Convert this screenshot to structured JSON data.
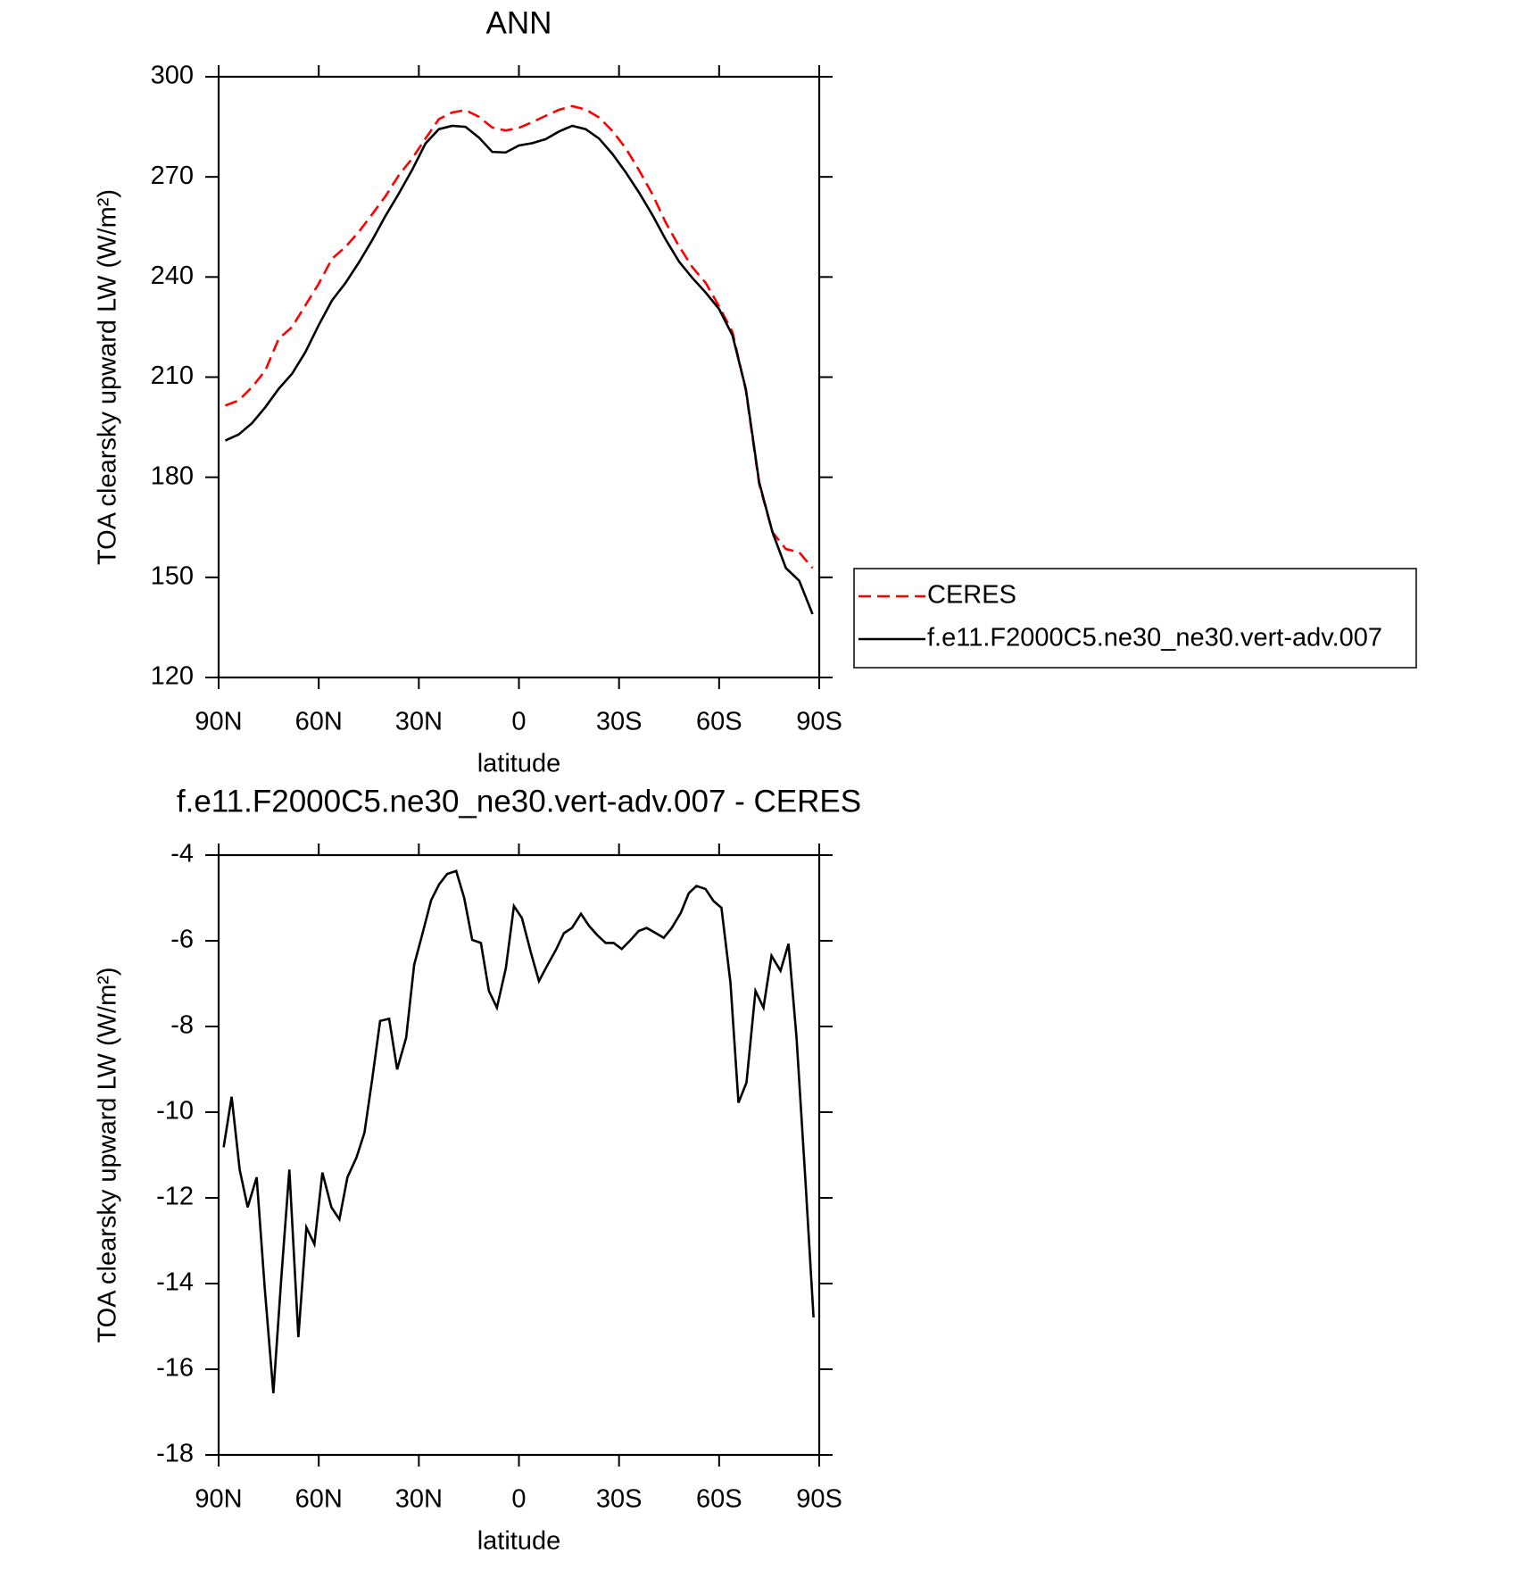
{
  "chart_data": [
    {
      "type": "line",
      "title": "ANN",
      "xlabel": "latitude",
      "ylabel": "TOA clearsky upward LW (W/m²)",
      "x": [
        88,
        84,
        80,
        76,
        72,
        68,
        64,
        60,
        56,
        52,
        48,
        44,
        40,
        36,
        32,
        28,
        24,
        20,
        16,
        12,
        8,
        4,
        0,
        -4,
        -8,
        -12,
        -16,
        -20,
        -24,
        -28,
        -32,
        -36,
        -40,
        -44,
        -48,
        -52,
        -56,
        -60,
        -64,
        -68,
        -72,
        -76,
        -80,
        -84,
        -88
      ],
      "series": [
        {
          "name": "CERES",
          "color": "#ff0000",
          "linestyle": "dashed",
          "values": [
            201.5,
            203,
            207,
            212,
            221.5,
            225,
            231.5,
            238,
            245.5,
            249,
            253.5,
            258.8,
            264.2,
            270.5,
            275.5,
            281.5,
            287.3,
            289.3,
            290,
            288,
            284.8,
            283.9,
            284.7,
            286.4,
            288.3,
            290.1,
            291.2,
            290.2,
            287.8,
            283.8,
            278.6,
            272,
            264.8,
            256.3,
            249.2,
            242.9,
            238.2,
            231.2,
            223.5,
            206,
            178,
            163.5,
            158.5,
            157.5,
            152.8
          ]
        },
        {
          "name": "f.e11.F2000C5.ne30_ne30.vert-adv.007",
          "color": "#000000",
          "linestyle": "solid",
          "values": [
            191,
            192.8,
            196.2,
            201,
            206.5,
            211,
            217.5,
            225.6,
            233,
            238.2,
            244.3,
            251,
            258.3,
            265,
            272.1,
            280,
            284.3,
            285.3,
            285,
            281.8,
            277.5,
            277.3,
            279.4,
            280.1,
            281.3,
            283.6,
            285.3,
            284.3,
            281.5,
            276.9,
            271.4,
            265.3,
            258.6,
            251.2,
            244.6,
            239.7,
            235.3,
            230.4,
            222.5,
            206.5,
            178.5,
            163.5,
            152.8,
            149,
            139
          ]
        }
      ],
      "xlim": [
        90,
        -90
      ],
      "ylim": [
        120,
        300
      ],
      "xticks": [
        {
          "value": 90,
          "label": "90N"
        },
        {
          "value": 60,
          "label": "60N"
        },
        {
          "value": 30,
          "label": "30N"
        },
        0,
        {
          "value": -30,
          "label": "30S"
        },
        {
          "value": -60,
          "label": "60S"
        },
        {
          "value": -90,
          "label": "90S"
        }
      ],
      "yticks": [
        120,
        150,
        180,
        210,
        240,
        270,
        300
      ],
      "legend": "outside right"
    },
    {
      "type": "line",
      "title": "f.e11.F2000C5.ne30_ne30.vert-adv.007 - CERES",
      "xlabel": "latitude",
      "ylabel": "TOA clearsky upward LW (W/m²)",
      "x": [
        88.5,
        86.1,
        83.7,
        81.3,
        78.6,
        76.2,
        73.6,
        71.2,
        68.8,
        66.1,
        63.7,
        61.3,
        58.9,
        56.2,
        53.8,
        51.4,
        48.7,
        46.3,
        43.9,
        41.6,
        38.9,
        36.5,
        33.8,
        31.4,
        29.0,
        26.3,
        23.9,
        21.5,
        18.8,
        16.4,
        14.0,
        11.4,
        9.0,
        6.6,
        3.9,
        1.5,
        -0.9,
        -3.6,
        -6.0,
        -8.4,
        -11.1,
        -13.5,
        -15.9,
        -18.6,
        -21.0,
        -23.4,
        -26.0,
        -28.4,
        -30.8,
        -33.5,
        -35.9,
        -38.3,
        -41.0,
        -43.4,
        -45.8,
        -48.5,
        -50.9,
        -53.2,
        -55.9,
        -58.3,
        -60.7,
        -63.4,
        -65.8,
        -68.2,
        -70.9,
        -73.3,
        -75.7,
        -78.4,
        -80.8,
        -83.2,
        -85.9,
        -88.3
      ],
      "values": [
        -10.82,
        -9.64,
        -11.34,
        -12.22,
        -11.52,
        -14.09,
        -16.56,
        -13.85,
        -11.34,
        -15.25,
        -12.69,
        -13.08,
        -11.41,
        -12.22,
        -12.5,
        -11.52,
        -11.06,
        -10.48,
        -9.19,
        -7.87,
        -7.82,
        -9.0,
        -8.26,
        -6.56,
        -5.86,
        -5.05,
        -4.68,
        -4.44,
        -4.37,
        -5.0,
        -5.98,
        -6.05,
        -7.17,
        -7.56,
        -6.63,
        -5.19,
        -5.47,
        -6.28,
        -6.94,
        -6.59,
        -6.21,
        -5.82,
        -5.7,
        -5.37,
        -5.65,
        -5.86,
        -6.05,
        -6.05,
        -6.19,
        -5.98,
        -5.77,
        -5.7,
        -5.82,
        -5.93,
        -5.7,
        -5.35,
        -4.89,
        -4.72,
        -4.79,
        -5.07,
        -5.23,
        -6.98,
        -9.78,
        -9.31,
        -7.17,
        -7.56,
        -6.35,
        -6.7,
        -6.07,
        -8.26,
        -11.64,
        -14.79
      ],
      "color": "#000000",
      "xlim": [
        90,
        -90
      ],
      "ylim": [
        -18,
        -4
      ],
      "xticks": [
        {
          "value": 90,
          "label": "90N"
        },
        {
          "value": 60,
          "label": "60N"
        },
        {
          "value": 30,
          "label": "30N"
        },
        0,
        {
          "value": -30,
          "label": "30S"
        },
        {
          "value": -60,
          "label": "60S"
        },
        {
          "value": -90,
          "label": "90S"
        }
      ],
      "yticks": [
        -18,
        -16,
        -14,
        -12,
        -10,
        -8,
        -6,
        -4
      ]
    }
  ]
}
